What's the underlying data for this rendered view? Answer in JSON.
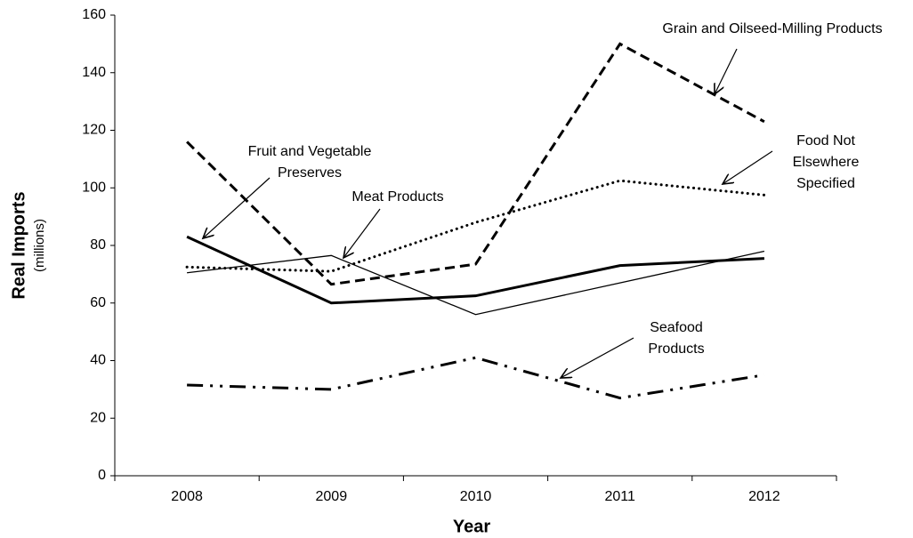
{
  "chart_data": {
    "type": "line",
    "x_label": "Year",
    "y_label": "Real Imports",
    "y_sublabel": "(millions)",
    "categories": [
      "2008",
      "2009",
      "2010",
      "2011",
      "2012"
    ],
    "ylim": [
      0,
      160
    ],
    "yticks": [
      0,
      20,
      40,
      60,
      80,
      100,
      120,
      140,
      160
    ],
    "grid": false,
    "series": [
      {
        "label": [
          "Grain and Oilseed-Milling Products"
        ],
        "color": "#000000",
        "style": "dashed",
        "values": [
          116,
          66.5,
          73.5,
          150,
          123
        ]
      },
      {
        "label": [
          "Food Not",
          "Elsewhere",
          "Specified"
        ],
        "color": "#000000",
        "style": "dotted",
        "values": [
          72.5,
          71,
          88,
          102.5,
          97.5
        ]
      },
      {
        "label": [
          "Fruit and Vegetable",
          "Preserves"
        ],
        "color": "#000000",
        "style": "solid-thick",
        "values": [
          83,
          60,
          62.5,
          73,
          75.5
        ]
      },
      {
        "label": [
          "Meat Products"
        ],
        "color": "#000000",
        "style": "solid-thin",
        "values": [
          70.5,
          76.5,
          56,
          67,
          78
        ]
      },
      {
        "label": [
          "Seafood",
          "Products"
        ],
        "color": "#000000",
        "style": "dash-dot-dot",
        "values": [
          31.5,
          30,
          41,
          27,
          35
        ]
      }
    ]
  }
}
